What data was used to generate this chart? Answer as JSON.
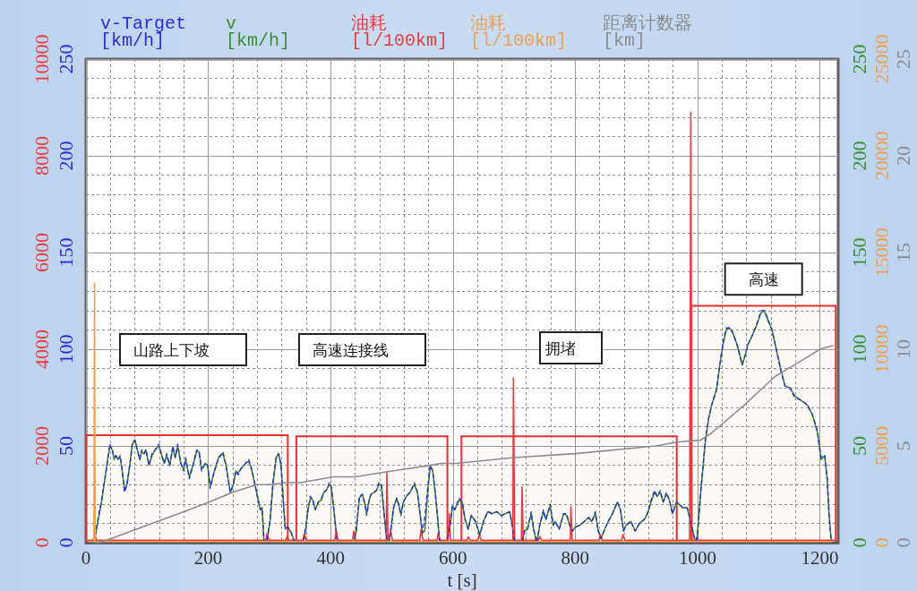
{
  "chart_data": [
    {
      "type": "line",
      "xlabel": "t [s]",
      "xlim": [
        0,
        1230
      ],
      "xticks": [
        0,
        200,
        400,
        600,
        800,
        1000,
        1200
      ],
      "ylim": [
        0,
        250
      ],
      "yticks": [
        0,
        50,
        100,
        150,
        200,
        250
      ],
      "y2lim": [
        0,
        10000
      ],
      "y2ticks": [
        0,
        2000,
        4000,
        6000,
        8000,
        10000
      ],
      "y3lim": [
        0,
        250
      ],
      "y3ticks": [
        0,
        50,
        100,
        150,
        200,
        250
      ],
      "grid": true,
      "legend": "top left",
      "marker": "none",
      "line_style": "solid",
      "series": [
        {
          "name": "v-Target [km/h]",
          "color": "#2b2bd6",
          "line_style": "dashed",
          "x": [
            12,
            14,
            19,
            26,
            31,
            36,
            39,
            43,
            46,
            49,
            52,
            56,
            59,
            63,
            67,
            72,
            76,
            80,
            84,
            88,
            91,
            95,
            98,
            103,
            108,
            113,
            119,
            123,
            128,
            132,
            137,
            142,
            146,
            150,
            155,
            160,
            163,
            169,
            175,
            181,
            185,
            189,
            195,
            199,
            203,
            210,
            217,
            224,
            229,
            236,
            241,
            245,
            249,
            253,
            261,
            266,
            270,
            275,
            282,
            285,
            288,
            291,
            292,
            296,
            301,
            306,
            311,
            315,
            319,
            323,
            326,
            330,
            336,
            340,
            355,
            358,
            363,
            367,
            371,
            375,
            380,
            385,
            389,
            393,
            398,
            401,
            405,
            409,
            411,
            438,
            442,
            447,
            452,
            456,
            459,
            463,
            466,
            471,
            475,
            479,
            483,
            486,
            490,
            493,
            496,
            500,
            503,
            508,
            511,
            515,
            519,
            524,
            530,
            533,
            537,
            542,
            547,
            550,
            554,
            559,
            563,
            567,
            571,
            575,
            578,
            590,
            596,
            599,
            603,
            610,
            615,
            620,
            625,
            630,
            637,
            644,
            650,
            657,
            664,
            672,
            679,
            686,
            693,
            697,
            701,
            713,
            717,
            722,
            728,
            732,
            737,
            742,
            748,
            752,
            759,
            764,
            767,
            774,
            781,
            786,
            791,
            795,
            800,
            808,
            815,
            822,
            827,
            833,
            837,
            842,
            847,
            854,
            861,
            869,
            874,
            879,
            883,
            891,
            898,
            905,
            913,
            918,
            925,
            930,
            934,
            939,
            944,
            949,
            954,
            959,
            966,
            976,
            983,
            988,
            995,
            999,
            1005,
            1013,
            1018,
            1023,
            1031,
            1036,
            1042,
            1047,
            1052,
            1057,
            1065,
            1073,
            1078,
            1083,
            1088,
            1096,
            1104,
            1109,
            1115,
            1122,
            1128,
            1136,
            1143,
            1151,
            1159,
            1167,
            1172,
            1180,
            1188,
            1196,
            1202,
            1208,
            1212,
            1215,
            1218,
            1219
          ],
          "values": [
            0,
            2,
            11,
            23,
            33,
            44,
            51,
            48,
            44,
            45,
            43,
            45,
            38,
            26,
            30,
            41,
            52,
            53,
            48,
            43,
            48,
            46,
            48,
            40,
            46,
            48,
            51,
            46,
            41,
            46,
            40,
            50,
            44,
            51,
            41,
            37,
            44,
            33,
            40,
            48,
            47,
            37,
            41,
            40,
            28,
            37,
            44,
            47,
            40,
            26,
            30,
            37,
            35,
            38,
            41,
            43,
            39,
            32,
            21,
            17,
            18,
            2,
            0,
            1,
            12,
            32,
            44,
            46,
            40,
            20,
            7,
            8,
            5,
            1,
            0,
            5,
            17,
            24,
            22,
            17,
            21,
            23,
            26,
            27,
            31,
            29,
            18,
            6,
            0,
            0,
            7,
            24,
            25,
            20,
            14,
            22,
            25,
            26,
            27,
            31,
            30,
            20,
            7,
            0,
            1,
            11,
            18,
            23,
            20,
            14,
            21,
            24,
            26,
            28,
            31,
            26,
            13,
            5,
            13,
            29,
            40,
            37,
            26,
            13,
            1,
            0,
            10,
            19,
            17,
            23,
            21,
            12,
            7,
            14,
            11,
            4,
            11,
            16,
            15,
            16,
            14,
            15,
            16,
            9,
            0,
            0,
            6,
            7,
            16,
            7,
            0,
            9,
            17,
            12,
            20,
            9,
            11,
            7,
            15,
            15,
            9,
            6,
            8,
            9,
            11,
            13,
            11,
            16,
            7,
            2,
            6,
            11,
            15,
            21,
            17,
            6,
            9,
            11,
            6,
            10,
            12,
            15,
            23,
            27,
            24,
            27,
            21,
            26,
            22,
            15,
            21,
            18,
            18,
            12,
            2,
            1,
            26,
            54,
            64,
            71,
            79,
            91,
            104,
            111,
            111,
            109,
            102,
            92,
            97,
            103,
            106,
            112,
            120,
            120,
            116,
            109,
            101,
            89,
            81,
            80,
            75,
            74,
            73,
            71,
            66,
            58,
            44,
            45,
            33,
            15,
            3,
            0
          ]
        },
        {
          "name": "v [km/h]",
          "color": "#3a8f32",
          "axis": "y3",
          "x": [
            12,
            14,
            19,
            26,
            31,
            36,
            39,
            43,
            46,
            49,
            52,
            56,
            59,
            63,
            67,
            72,
            76,
            80,
            84,
            88,
            91,
            95,
            98,
            103,
            108,
            113,
            119,
            123,
            128,
            132,
            137,
            142,
            146,
            150,
            155,
            160,
            163,
            169,
            175,
            181,
            185,
            189,
            195,
            199,
            203,
            210,
            217,
            224,
            229,
            236,
            241,
            245,
            249,
            253,
            261,
            266,
            270,
            275,
            282,
            285,
            288,
            291,
            292,
            296,
            301,
            306,
            311,
            315,
            319,
            323,
            326,
            330,
            336,
            340,
            355,
            358,
            363,
            367,
            371,
            375,
            380,
            385,
            389,
            393,
            398,
            401,
            405,
            409,
            411,
            438,
            442,
            447,
            452,
            456,
            459,
            463,
            466,
            471,
            475,
            479,
            483,
            486,
            490,
            493,
            496,
            500,
            503,
            508,
            511,
            515,
            519,
            524,
            530,
            533,
            537,
            542,
            547,
            550,
            554,
            559,
            563,
            567,
            571,
            575,
            578,
            590,
            596,
            599,
            603,
            610,
            615,
            620,
            625,
            630,
            637,
            644,
            650,
            657,
            664,
            672,
            679,
            686,
            693,
            697,
            701,
            713,
            717,
            722,
            728,
            732,
            737,
            742,
            748,
            752,
            759,
            764,
            767,
            774,
            781,
            786,
            791,
            795,
            800,
            808,
            815,
            822,
            827,
            833,
            837,
            842,
            847,
            854,
            861,
            869,
            874,
            879,
            883,
            891,
            898,
            905,
            913,
            918,
            925,
            930,
            934,
            939,
            944,
            949,
            954,
            959,
            966,
            976,
            983,
            988,
            995,
            999,
            1005,
            1013,
            1018,
            1023,
            1031,
            1036,
            1042,
            1047,
            1052,
            1057,
            1065,
            1073,
            1078,
            1083,
            1088,
            1096,
            1104,
            1109,
            1115,
            1122,
            1128,
            1136,
            1143,
            1151,
            1159,
            1167,
            1172,
            1180,
            1188,
            1196,
            1202,
            1208,
            1212,
            1215,
            1218,
            1219
          ],
          "values": [
            0,
            1,
            10,
            22,
            33,
            44,
            50,
            48,
            43,
            45,
            43,
            44,
            38,
            27,
            30,
            41,
            51,
            53,
            48,
            43,
            47,
            46,
            48,
            40,
            45,
            48,
            50,
            46,
            41,
            45,
            40,
            49,
            44,
            50,
            41,
            38,
            43,
            34,
            40,
            47,
            47,
            38,
            41,
            40,
            29,
            37,
            44,
            46,
            40,
            26,
            30,
            37,
            36,
            38,
            41,
            42,
            39,
            32,
            22,
            17,
            18,
            0,
            0,
            1,
            11,
            31,
            44,
            46,
            40,
            20,
            7,
            8,
            5,
            1,
            0,
            4,
            17,
            23,
            22,
            17,
            21,
            22,
            26,
            27,
            30,
            29,
            18,
            6,
            0,
            0,
            6,
            23,
            25,
            20,
            15,
            22,
            25,
            26,
            27,
            30,
            30,
            20,
            7,
            0,
            1,
            10,
            18,
            23,
            20,
            15,
            21,
            24,
            26,
            28,
            30,
            26,
            13,
            5,
            6,
            27,
            40,
            37,
            26,
            13,
            1,
            0,
            10,
            19,
            17,
            22,
            21,
            12,
            7,
            14,
            11,
            4,
            11,
            16,
            15,
            16,
            14,
            15,
            16,
            9,
            0,
            0,
            6,
            7,
            15,
            7,
            0,
            9,
            16,
            12,
            19,
            9,
            11,
            7,
            15,
            14,
            9,
            6,
            8,
            9,
            11,
            13,
            11,
            15,
            7,
            2,
            6,
            11,
            15,
            21,
            17,
            6,
            9,
            11,
            6,
            10,
            12,
            15,
            22,
            26,
            24,
            26,
            21,
            25,
            22,
            15,
            21,
            18,
            18,
            12,
            2,
            1,
            25,
            53,
            64,
            71,
            79,
            91,
            103,
            110,
            111,
            109,
            102,
            92,
            97,
            103,
            106,
            112,
            119,
            120,
            115,
            110,
            101,
            90,
            81,
            80,
            76,
            74,
            73,
            71,
            66,
            57,
            43,
            45,
            33,
            15,
            3,
            0
          ]
        },
        {
          "name": "油耗 [l/100km]",
          "color": "#e83c3c",
          "axis": "y2",
          "x": [
            0,
            12,
            14,
            17,
            60,
            120,
            200,
            260,
            294,
            296,
            299,
            327,
            329,
            332,
            355,
            357,
            360,
            407,
            409,
            412,
            436,
            438,
            441,
            491,
            492,
            494,
            496,
            498,
            501,
            546,
            548,
            551,
            574,
            576,
            579,
            592,
            594,
            596,
            623,
            625,
            628,
            641,
            643,
            646,
            698,
            699,
            701,
            712,
            713,
            715,
            740,
            742,
            745,
            792,
            793,
            795,
            839,
            841,
            844,
            876,
            878,
            881,
            960,
            987,
            989,
            991,
            997,
            999,
            1002,
            1100,
            1226
          ],
          "values": [
            50,
            50,
            200,
            50,
            50,
            50,
            50,
            50,
            50,
            190,
            50,
            50,
            130,
            50,
            50,
            190,
            50,
            50,
            250,
            50,
            50,
            240,
            50,
            50,
            1450,
            50,
            50,
            270,
            50,
            50,
            270,
            50,
            50,
            190,
            50,
            50,
            600,
            50,
            50,
            120,
            50,
            50,
            170,
            50,
            50,
            3400,
            50,
            50,
            1150,
            50,
            50,
            130,
            50,
            50,
            750,
            50,
            50,
            170,
            50,
            50,
            170,
            50,
            50,
            50,
            8900,
            50,
            50,
            120,
            50,
            50,
            50
          ]
        }
      ],
      "bands": [
        {
          "axis": "x",
          "from": 0,
          "to": 330,
          "color": "#e03030"
        },
        {
          "axis": "x",
          "from": 344,
          "to": 591,
          "color": "#e03030"
        },
        {
          "axis": "x",
          "from": 614,
          "to": 966,
          "color": "#e03030"
        },
        {
          "axis": "x",
          "from": 990,
          "to": 1226,
          "label": "高速",
          "color": "#e03030"
        }
      ],
      "annotations": [
        "山路上下坡",
        "高速连接线",
        "拥堵"
      ]
    },
    {
      "type": "line",
      "xlim": [
        0,
        1230
      ],
      "ylim": [
        0,
        25000
      ],
      "yticks": [
        0,
        5000,
        10000,
        15000,
        20000,
        25000
      ],
      "y2lim": [
        0,
        25
      ],
      "y2ticks": [
        0,
        5,
        10,
        15,
        20,
        25
      ],
      "tick_labels": "y",
      "legend": "top right",
      "marker": "none",
      "line_style": "solid",
      "series": [
        {
          "name": "油耗 [l/100km]",
          "color": "#f0a050",
          "x": [
            5,
            13,
            14,
            15,
            1220
          ],
          "values": [
            60,
            60,
            13400,
            60,
            60
          ]
        },
        {
          "name": "距离计数器 [km]",
          "color": "#8c8c8c",
          "axis": "y2",
          "x": [
            14,
            20,
            40,
            100,
            160,
            201,
            240,
            279,
            300,
            328,
            350,
            405,
            440,
            479,
            520,
            564,
            580,
            605,
            700,
            800,
            932,
            966,
            1005,
            1020,
            1039,
            1076,
            1127,
            1138,
            1180,
            1200,
            1222
          ],
          "values": [
            0,
            0,
            0.2,
            0.9,
            1.6,
            2.1,
            2.6,
            3,
            3,
            3.1,
            3.1,
            3.4,
            3.4,
            3.6,
            3.8,
            4,
            4.1,
            4.1,
            4.4,
            4.6,
            5,
            5.2,
            5.3,
            5.6,
            6.1,
            7.1,
            8.6,
            8.8,
            9.6,
            10,
            10.2
          ]
        }
      ]
    }
  ]
}
